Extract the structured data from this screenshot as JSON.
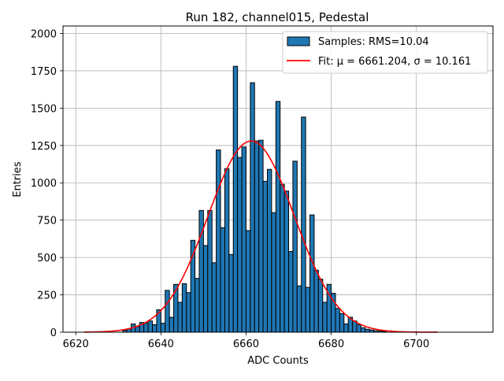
{
  "chart_data": {
    "type": "bar",
    "title": "Run 182, channel015, Pedestal",
    "xlabel": "ADC Counts",
    "ylabel": "Entries",
    "xlim": [
      6617,
      6718
    ],
    "ylim": [
      0,
      2050
    ],
    "xticks": [
      "6620",
      "6640",
      "6660",
      "6680",
      "6700"
    ],
    "yticks": [
      "0",
      "250",
      "500",
      "750",
      "1000",
      "1250",
      "1500",
      "1750",
      "2000"
    ],
    "grid": true,
    "legend_position": "top-right",
    "legend": {
      "samples": "Samples: RMS=10.04",
      "fit": "Fit: μ = 6661.204, σ = 10.161"
    },
    "histogram": {
      "x": [
        6631,
        6632,
        6633,
        6634,
        6635,
        6636,
        6637,
        6638,
        6639,
        6640,
        6641,
        6642,
        6643,
        6644,
        6645,
        6646,
        6647,
        6648,
        6649,
        6650,
        6651,
        6652,
        6653,
        6654,
        6655,
        6656,
        6657,
        6658,
        6659,
        6660,
        6661,
        6662,
        6663,
        6664,
        6665,
        6666,
        6667,
        6668,
        6669,
        6670,
        6671,
        6672,
        6673,
        6674,
        6675,
        6676,
        6677,
        6678,
        6679,
        6680,
        6681,
        6682,
        6683,
        6684,
        6685,
        6686,
        6687,
        6688,
        6689,
        6690,
        6691,
        6692
      ],
      "values": [
        12,
        22,
        55,
        38,
        65,
        60,
        75,
        50,
        150,
        60,
        280,
        100,
        320,
        200,
        325,
        265,
        615,
        360,
        815,
        580,
        815,
        465,
        1220,
        700,
        1095,
        520,
        1780,
        1170,
        1240,
        680,
        1670,
        1280,
        1285,
        1010,
        1090,
        800,
        1545,
        990,
        945,
        540,
        1145,
        310,
        1440,
        300,
        785,
        415,
        355,
        200,
        320,
        260,
        160,
        125,
        55,
        100,
        75,
        50,
        30,
        20,
        15,
        10,
        8,
        5
      ],
      "color": "#1f77b4",
      "edgecolor": "#000000"
    },
    "fit": {
      "mu": 6661.204,
      "sigma": 10.161,
      "amplitude": 1280,
      "x_range": [
        6622,
        6705
      ],
      "color": "#ff0000"
    }
  }
}
